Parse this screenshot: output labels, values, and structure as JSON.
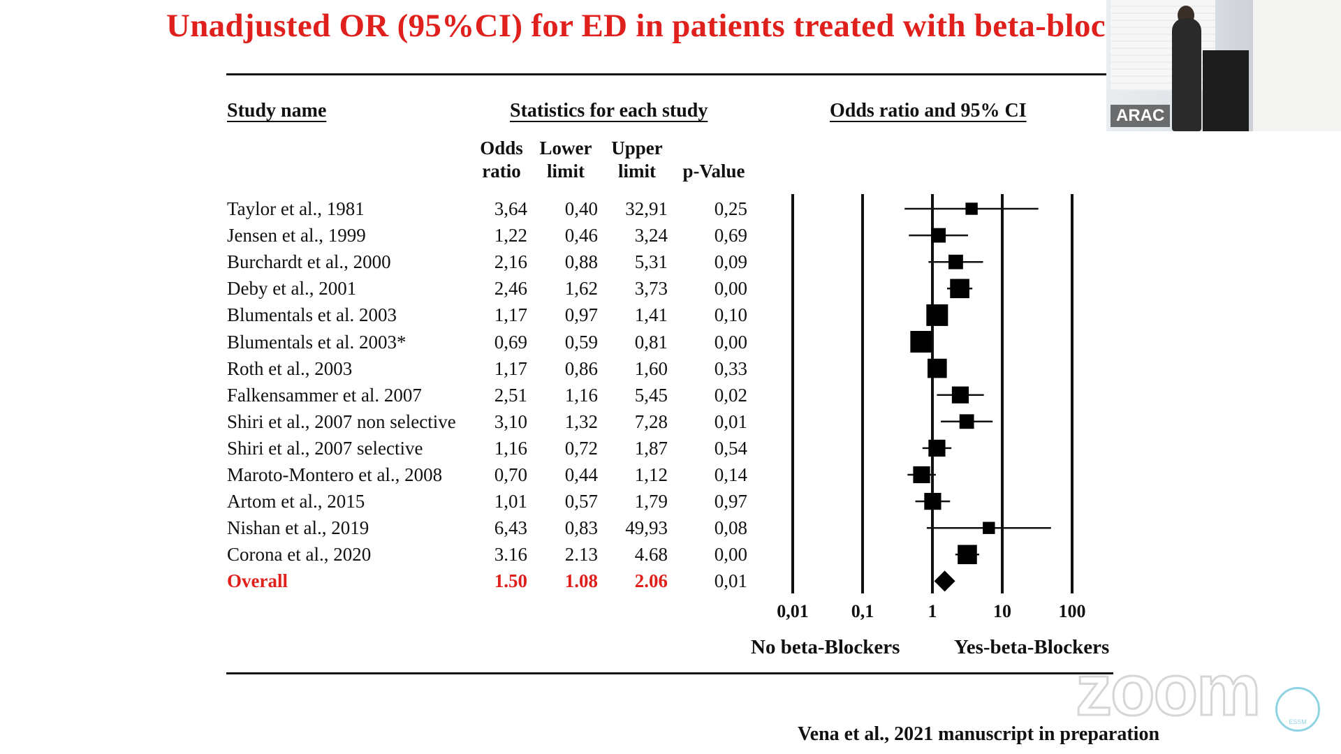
{
  "slide": {
    "title": "Unadjusted OR (95%CI) for ED in patients treated with beta-bloc",
    "citation": "Vena  et al., 2021 manuscript in preparation"
  },
  "headers": {
    "study_name": "Study name",
    "statistics": "Statistics for each study",
    "odds_ratio_ci": "Odds ratio and 95% CI",
    "col_or_1": "Odds",
    "col_or_2": "ratio",
    "col_ll_1": "Lower",
    "col_ll_2": "limit",
    "col_ul_1": "Upper",
    "col_ul_2": "limit",
    "col_p": "p-Value"
  },
  "rows": [
    {
      "study": "Taylor et al., 1981",
      "or": "3,64",
      "ll": "0,40",
      "ul": "32,91",
      "p": "0,25"
    },
    {
      "study": "Jensen et al., 1999",
      "or": "1,22",
      "ll": "0,46",
      "ul": "3,24",
      "p": "0,69"
    },
    {
      "study": "Burchardt et al., 2000",
      "or": "2,16",
      "ll": "0,88",
      "ul": "5,31",
      "p": "0,09"
    },
    {
      "study": "Deby et al., 2001",
      "or": "2,46",
      "ll": "1,62",
      "ul": "3,73",
      "p": "0,00"
    },
    {
      "study": "Blumentals et al. 2003",
      "or": "1,17",
      "ll": "0,97",
      "ul": "1,41",
      "p": "0,10"
    },
    {
      "study": "Blumentals et al. 2003*",
      "or": "0,69",
      "ll": "0,59",
      "ul": "0,81",
      "p": "0,00"
    },
    {
      "study": "Roth et al.,  2003",
      "or": "1,17",
      "ll": "0,86",
      "ul": "1,60",
      "p": "0,33"
    },
    {
      "study": "Falkensammer et al. 2007",
      "or": "2,51",
      "ll": "1,16",
      "ul": "5,45",
      "p": "0,02"
    },
    {
      "study": "Shiri et al., 2007 non selective",
      "or": "3,10",
      "ll": "1,32",
      "ul": "7,28",
      "p": "0,01"
    },
    {
      "study": "Shiri et al., 2007  selective",
      "or": "1,16",
      "ll": "0,72",
      "ul": "1,87",
      "p": "0,54"
    },
    {
      "study": "Maroto-Montero et al., 2008",
      "or": "0,70",
      "ll": "0,44",
      "ul": "1,12",
      "p": "0,14"
    },
    {
      "study": "Artom et al., 2015",
      "or": "1,01",
      "ll": "0,57",
      "ul": "1,79",
      "p": "0,97"
    },
    {
      "study": "Nishan et al., 2019",
      "or": "6,43",
      "ll": "0,83",
      "ul": "49,93",
      "p": "0,08"
    },
    {
      "study": "Corona et al., 2020",
      "or": "3.16",
      "ll": "2.13",
      "ul": "4.68",
      "p": "0,00"
    }
  ],
  "overall": {
    "study": "Overall",
    "or": "1.50",
    "ll": "1.08",
    "ul": "2.06",
    "p": "0,01"
  },
  "axis": {
    "ticks": [
      "0,01",
      "0,1",
      "1",
      "10",
      "100"
    ],
    "left_label": "No beta-Blockers",
    "right_label": "Yes-beta-Blockers"
  },
  "video": {
    "participant_label": "ARAC",
    "watermark": "zoom",
    "logo_text": "ESSM"
  },
  "colors": {
    "accent_red": "#e0201c",
    "ink": "#111111"
  },
  "chart_data": {
    "type": "forest",
    "title": "Odds ratio and 95% CI",
    "x_scale": "log",
    "xlim": [
      0.01,
      100
    ],
    "x_ticks": [
      0.01,
      0.1,
      1,
      10,
      100
    ],
    "reference_line": 1,
    "studies": [
      {
        "name": "Taylor et al., 1981",
        "or": 3.64,
        "lower": 0.4,
        "upper": 32.91,
        "weight": 1
      },
      {
        "name": "Jensen et al., 1999",
        "or": 1.22,
        "lower": 0.46,
        "upper": 3.24,
        "weight": 2
      },
      {
        "name": "Burchardt et al., 2000",
        "or": 2.16,
        "lower": 0.88,
        "upper": 5.31,
        "weight": 2
      },
      {
        "name": "Deby et al., 2001",
        "or": 2.46,
        "lower": 1.62,
        "upper": 3.73,
        "weight": 4
      },
      {
        "name": "Blumentals et al. 2003",
        "or": 1.17,
        "lower": 0.97,
        "upper": 1.41,
        "weight": 5
      },
      {
        "name": "Blumentals et al. 2003*",
        "or": 0.69,
        "lower": 0.59,
        "upper": 0.81,
        "weight": 5
      },
      {
        "name": "Roth et al.,  2003",
        "or": 1.17,
        "lower": 0.86,
        "upper": 1.6,
        "weight": 4
      },
      {
        "name": "Falkensammer et al. 2007",
        "or": 2.51,
        "lower": 1.16,
        "upper": 5.45,
        "weight": 3
      },
      {
        "name": "Shiri et al., 2007 non selective",
        "or": 3.1,
        "lower": 1.32,
        "upper": 7.28,
        "weight": 2
      },
      {
        "name": "Shiri et al., 2007  selective",
        "or": 1.16,
        "lower": 0.72,
        "upper": 1.87,
        "weight": 3
      },
      {
        "name": "Maroto-Montero et al., 2008",
        "or": 0.7,
        "lower": 0.44,
        "upper": 1.12,
        "weight": 3
      },
      {
        "name": "Artom et al., 2015",
        "or": 1.01,
        "lower": 0.57,
        "upper": 1.79,
        "weight": 3
      },
      {
        "name": "Nishan et al., 2019",
        "or": 6.43,
        "lower": 0.83,
        "upper": 49.93,
        "weight": 1
      },
      {
        "name": "Corona et al., 2020",
        "or": 3.16,
        "lower": 2.13,
        "upper": 4.68,
        "weight": 4
      }
    ],
    "overall": {
      "name": "Overall",
      "or": 1.5,
      "lower": 1.08,
      "upper": 2.06
    },
    "xlabel_left": "No beta-Blockers",
    "xlabel_right": "Yes-beta-Blockers"
  }
}
